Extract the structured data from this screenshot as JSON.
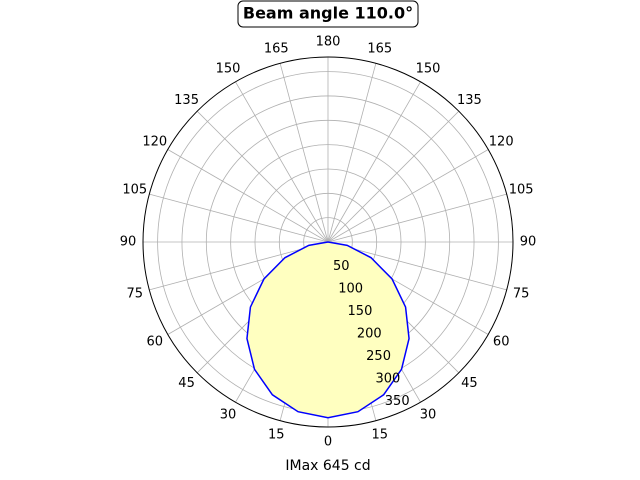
{
  "chart_data": {
    "type": "polar",
    "title": "Beam angle 110.0°",
    "xlabel": "IMax 645 cd",
    "x": [
      -90,
      -80,
      -70,
      -60,
      -50,
      -40,
      -30,
      -20,
      -10,
      0,
      10,
      20,
      30,
      40,
      50,
      60,
      70,
      80,
      90
    ],
    "series": [
      {
        "color": "#0000ff",
        "fill": "#ffffc0",
        "values": [
          0,
          40,
          94,
          152,
          208,
          259,
          302,
          334,
          354,
          361,
          354,
          334,
          302,
          259,
          208,
          152,
          94,
          40,
          0
        ]
      }
    ],
    "rlim": [
      0,
      380
    ],
    "rticks": [
      50,
      100,
      150,
      200,
      250,
      300,
      350
    ],
    "xticks": [
      0,
      15,
      30,
      45,
      60,
      75,
      90,
      105,
      120,
      135,
      150,
      165,
      180,
      {
        "value": 195,
        "label": "165"
      },
      {
        "value": 210,
        "label": "150"
      },
      {
        "value": 225,
        "label": "135"
      },
      {
        "value": 240,
        "label": "120"
      },
      {
        "value": 255,
        "label": "105"
      },
      {
        "value": 270,
        "label": "90"
      },
      {
        "value": 285,
        "label": "75"
      },
      {
        "value": 300,
        "label": "60"
      },
      {
        "value": 315,
        "label": "45"
      },
      {
        "value": 330,
        "label": "30"
      },
      {
        "value": 345,
        "label": "15"
      }
    ],
    "grid": true
  }
}
